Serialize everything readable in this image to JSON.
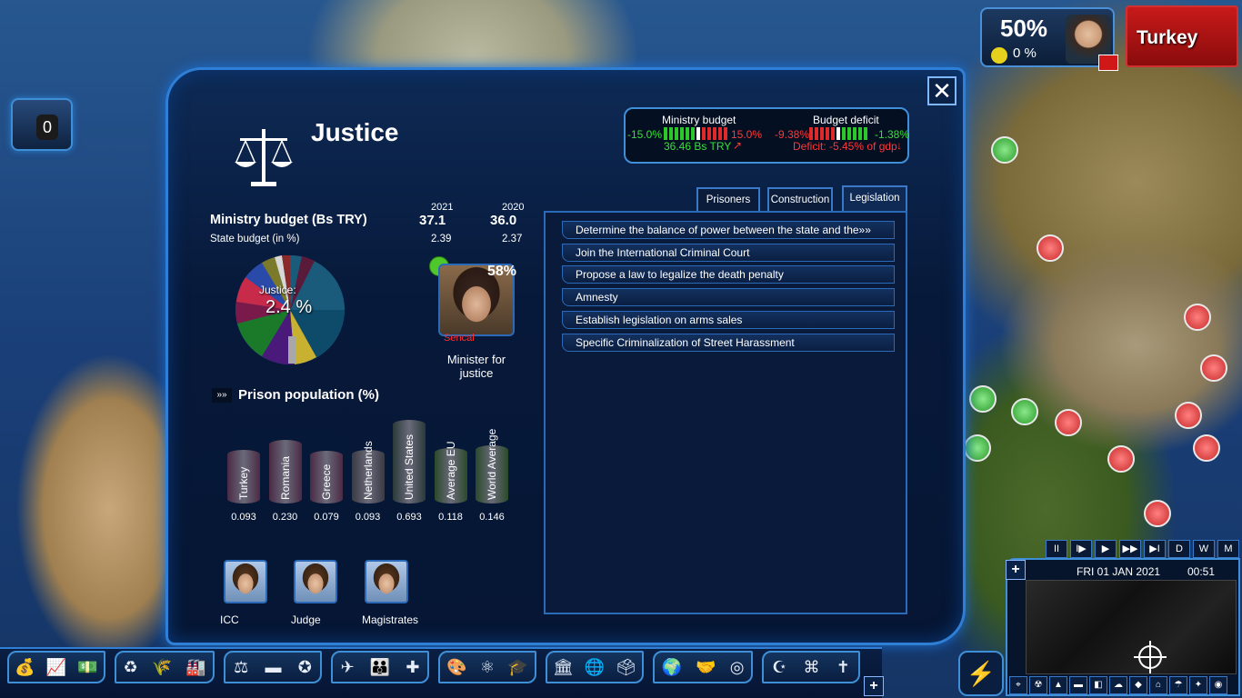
{
  "hud": {
    "approval": "50%",
    "sub": "0 %",
    "country": "Turkey",
    "counter": "0"
  },
  "panel": {
    "title": "Justice",
    "budget_box": {
      "ministry_label": "Ministry budget",
      "ministry_min": "-15.0%",
      "ministry_max": "15.0%",
      "ministry_value": "36.46 Bs TRY",
      "deficit_label": "Budget deficit",
      "deficit_min": "-9.38%",
      "deficit_max": "-1.38%",
      "deficit_value": "Deficit: -5.45% of gdp"
    },
    "ministry_budget": {
      "label": "Ministry budget (Bs TRY)",
      "year1": "2021",
      "year2": "2020",
      "val1": "37.1",
      "val2": "36.0",
      "state_label": "State budget (in %)",
      "state1": "2.39",
      "state2": "2.37"
    },
    "pie": {
      "label": "Justice:",
      "value": "2.4 %"
    },
    "minister": {
      "pct": "58%",
      "status": "Sencal",
      "title": "Minister for justice"
    },
    "prison": {
      "title": "Prison population (%)"
    },
    "people": [
      {
        "label": "ICC"
      },
      {
        "label": "Judge"
      },
      {
        "label": "Magistrates"
      }
    ],
    "tabs": [
      "Prisoners",
      "Construction",
      "Legislation"
    ],
    "legislation": [
      "Determine the balance of power between the state and the»»",
      "Join the International Criminal Court",
      "Propose a law to legalize the death penalty",
      "Amnesty",
      "Establish legislation on arms sales",
      "Specific Criminalization of Street Harassment"
    ]
  },
  "chart_data": {
    "type": "bar",
    "title": "Prison population (%)",
    "categories": [
      "Turkey",
      "Romania",
      "Greece",
      "Netherlands",
      "United States",
      "Average EU",
      "World Average"
    ],
    "values": [
      0.093,
      0.23,
      0.079,
      0.093,
      0.693,
      0.118,
      0.146
    ],
    "labels": [
      "0.093",
      "0.230",
      "0.079",
      "0.093",
      "0.693",
      "0.118",
      "0.146"
    ],
    "colors": [
      "#4a2a44",
      "#4a2a44",
      "#4a2a44",
      "#3a3a44",
      "#2a3a3a",
      "#2a4a2a",
      "#2a4a2a"
    ]
  },
  "time": {
    "date": "FRI 01 JAN 2021",
    "clock": "00:51",
    "controls": [
      "II",
      "I▶",
      "▶",
      "▶▶",
      "▶I",
      "D",
      "W",
      "M"
    ]
  }
}
